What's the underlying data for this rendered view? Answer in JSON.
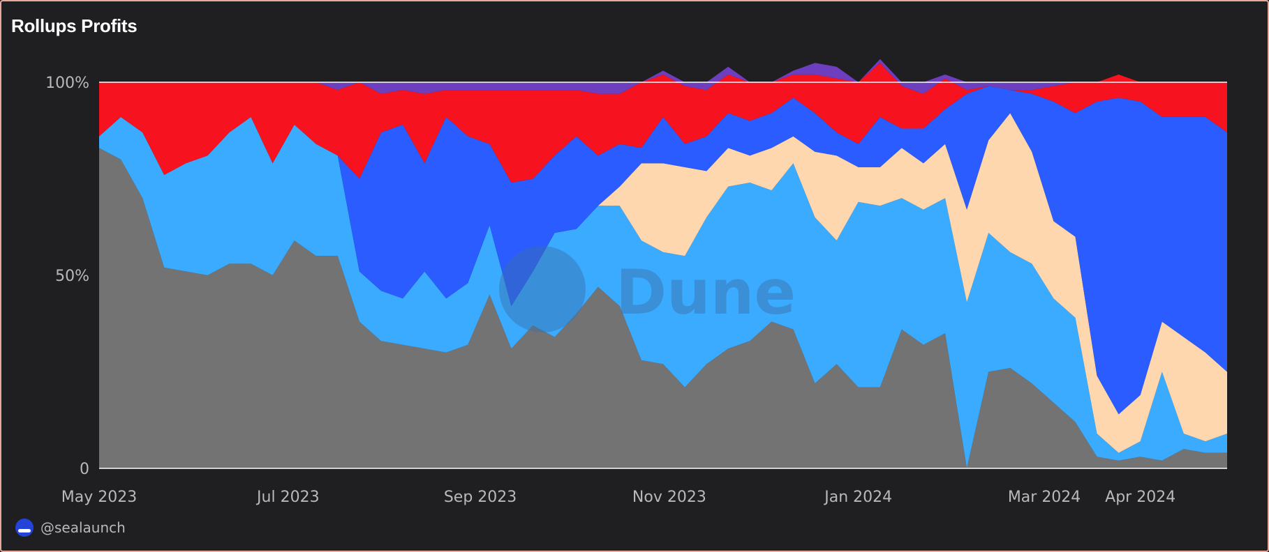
{
  "title": "Rollups Profits",
  "footer": {
    "handle": "@sealaunch",
    "avatar_icon": "sealaunch-avatar-icon"
  },
  "watermark": "Dune",
  "chart_data": {
    "type": "area",
    "stacking": "percent",
    "title": "Rollups Profits",
    "xlabel": "",
    "ylabel": "",
    "ylim": [
      0,
      100
    ],
    "grid": false,
    "legend": "none",
    "y_ticks": [
      {
        "value": 0,
        "label": "0"
      },
      {
        "value": 50,
        "label": "50%"
      },
      {
        "value": 100,
        "label": "100%"
      }
    ],
    "x_ticks": [
      {
        "date": "2023-05-01",
        "label": "May 2023"
      },
      {
        "date": "2023-07-01",
        "label": "Jul 2023"
      },
      {
        "date": "2023-09-01",
        "label": "Sep 2023"
      },
      {
        "date": "2023-11-01",
        "label": "Nov 2023"
      },
      {
        "date": "2024-01-01",
        "label": "Jan 2024"
      },
      {
        "date": "2024-03-01",
        "label": "Mar 2024"
      },
      {
        "date": "2024-04-01",
        "label": "Apr 2024"
      }
    ],
    "x": [
      "2023-05-01",
      "2023-05-08",
      "2023-05-15",
      "2023-05-22",
      "2023-05-29",
      "2023-06-05",
      "2023-06-12",
      "2023-06-19",
      "2023-06-26",
      "2023-07-03",
      "2023-07-10",
      "2023-07-17",
      "2023-07-24",
      "2023-07-31",
      "2023-08-07",
      "2023-08-14",
      "2023-08-21",
      "2023-08-28",
      "2023-09-04",
      "2023-09-11",
      "2023-09-18",
      "2023-09-25",
      "2023-10-02",
      "2023-10-09",
      "2023-10-16",
      "2023-10-23",
      "2023-10-30",
      "2023-11-06",
      "2023-11-13",
      "2023-11-20",
      "2023-11-27",
      "2023-12-04",
      "2023-12-11",
      "2023-12-18",
      "2023-12-25",
      "2024-01-01",
      "2024-01-08",
      "2024-01-15",
      "2024-01-22",
      "2024-01-29",
      "2024-02-05",
      "2024-02-12",
      "2024-02-19",
      "2024-02-26",
      "2024-03-04",
      "2024-03-11",
      "2024-03-18",
      "2024-03-25",
      "2024-04-01",
      "2024-04-08",
      "2024-04-15",
      "2024-04-22",
      "2024-04-29"
    ],
    "series": [
      {
        "color": "#737373",
        "values": [
          83,
          80,
          70,
          52,
          51,
          50,
          53,
          53,
          50,
          59,
          55,
          55,
          38,
          33,
          32,
          31,
          30,
          32,
          45,
          31,
          37,
          34,
          40,
          47,
          42,
          28,
          27,
          21,
          27,
          31,
          33,
          38,
          36,
          22,
          27,
          21,
          21,
          36,
          32,
          35,
          0,
          25,
          26,
          22,
          17,
          12,
          3,
          2,
          3,
          2,
          5,
          4,
          4
        ]
      },
      {
        "color": "#3aabff",
        "values": [
          3,
          11,
          17,
          24,
          28,
          31,
          34,
          38,
          29,
          30,
          29,
          26,
          13,
          13,
          12,
          20,
          14,
          16,
          18,
          11,
          14,
          27,
          22,
          21,
          26,
          31,
          29,
          34,
          38,
          42,
          41,
          34,
          43,
          43,
          32,
          48,
          47,
          34,
          35,
          35,
          43,
          36,
          30,
          31,
          27,
          27,
          6,
          2,
          4,
          23,
          4,
          3,
          5
        ]
      },
      {
        "color": "#fed7ae",
        "values": [
          0,
          0,
          0,
          0,
          0,
          0,
          0,
          0,
          0,
          0,
          0,
          0,
          0,
          0,
          0,
          0,
          0,
          0,
          0,
          0,
          0,
          0,
          0,
          0,
          5,
          20,
          23,
          23,
          12,
          10,
          7,
          11,
          7,
          17,
          22,
          9,
          10,
          13,
          12,
          14,
          24,
          24,
          36,
          29,
          20,
          21,
          15,
          10,
          12,
          13,
          25,
          23,
          16
        ]
      },
      {
        "color": "#2b5cff",
        "values": [
          0,
          0,
          0,
          0,
          0,
          0,
          0,
          0,
          0,
          0,
          0,
          0,
          24,
          41,
          45,
          28,
          47,
          38,
          21,
          32,
          24,
          20,
          24,
          13,
          11,
          4,
          12,
          6,
          9,
          9,
          9,
          9,
          10,
          10,
          6,
          6,
          13,
          5,
          9,
          9,
          30,
          14,
          6,
          15,
          31,
          32,
          71,
          82,
          76,
          53,
          57,
          61,
          62
        ]
      },
      {
        "color": "#f6121f",
        "values": [
          14,
          9,
          13,
          24,
          21,
          19,
          13,
          9,
          21,
          11,
          16,
          17,
          25,
          10,
          9,
          18,
          7,
          12,
          14,
          24,
          23,
          17,
          12,
          16,
          13,
          17,
          11,
          15,
          12,
          10,
          10,
          8,
          6,
          10,
          14,
          16,
          14,
          11,
          9,
          8,
          1,
          0,
          0,
          1,
          4,
          8,
          5,
          6,
          5,
          9,
          9,
          9,
          13
        ]
      },
      {
        "color": "#6d3fbf",
        "values": [
          0,
          0,
          0,
          0,
          0,
          0,
          0,
          0,
          0,
          0,
          0,
          2,
          0,
          3,
          2,
          3,
          2,
          2,
          2,
          2,
          2,
          2,
          2,
          3,
          3,
          0,
          1,
          1,
          2,
          2,
          0,
          0,
          1,
          3,
          3,
          0,
          1,
          1,
          3,
          1,
          2,
          1,
          2,
          2,
          1,
          0,
          0,
          0,
          0,
          0,
          0,
          0,
          0
        ]
      }
    ]
  }
}
